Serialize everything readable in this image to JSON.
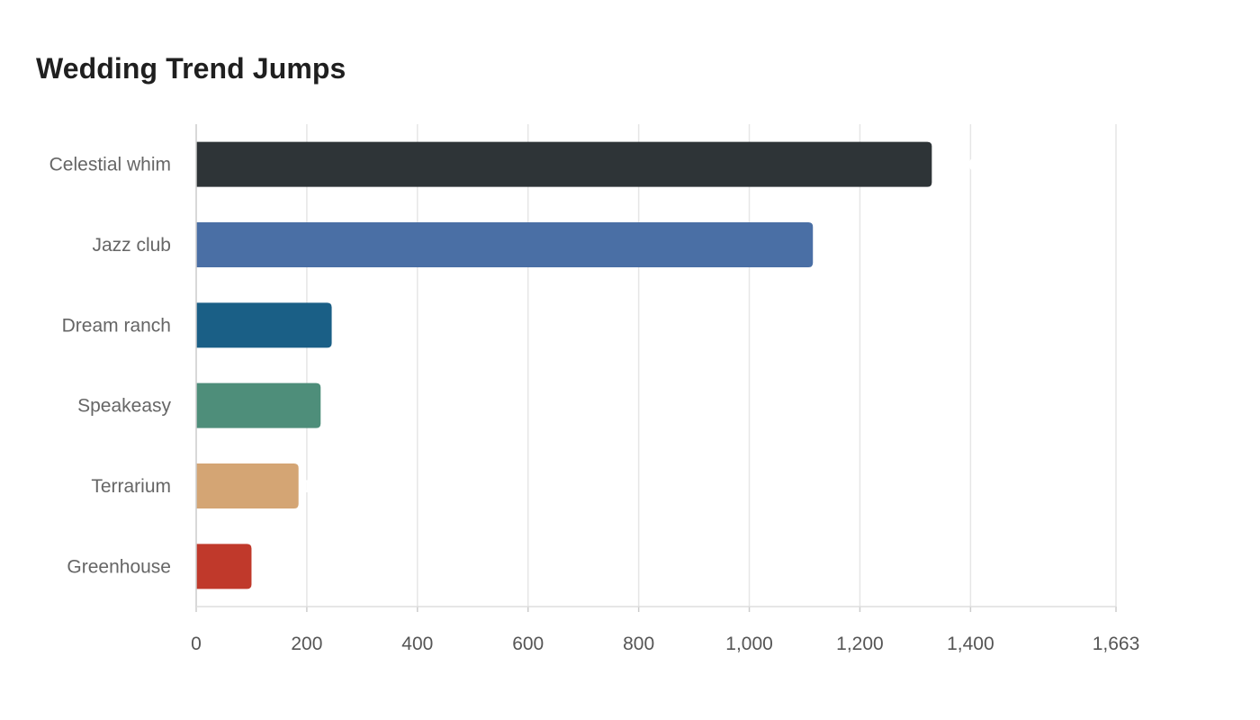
{
  "chart_data": {
    "type": "bar",
    "orientation": "horizontal",
    "title": "Wedding Trend Jumps",
    "xlabel": "",
    "ylabel": "",
    "categories": [
      "Celestial whim",
      "Jazz club",
      "Dream ranch",
      "Speakeasy",
      "Terrarium",
      "Greenhouse"
    ],
    "values": [
      1330,
      1115,
      245,
      225,
      185,
      100
    ],
    "colors": [
      "#2e3437",
      "#4a6fa5",
      "#1a5f86",
      "#4e8e7a",
      "#d4a574",
      "#c0392b"
    ],
    "xlim": [
      0,
      1663
    ],
    "x_ticks": [
      0,
      200,
      400,
      600,
      800,
      1000,
      1200,
      1400,
      1663
    ],
    "x_tick_labels": [
      "0",
      "200",
      "400",
      "600",
      "800",
      "1,000",
      "1,200",
      "1,400",
      "1,663"
    ],
    "grid": true,
    "legend": "none"
  }
}
